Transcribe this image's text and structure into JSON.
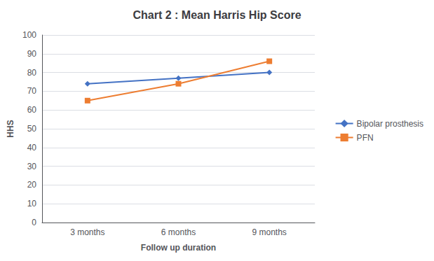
{
  "chart_data": {
    "type": "line",
    "title": "Chart 2 : Mean Harris Hip Score",
    "xlabel": "Follow up duration",
    "ylabel": "HHS",
    "categories": [
      "3 months",
      "6 months",
      "9 months"
    ],
    "series": [
      {
        "name": "Bipolar prosthesis",
        "color": "#4472C4",
        "marker": "diamond",
        "values": [
          74,
          77,
          80
        ]
      },
      {
        "name": "PFN",
        "color": "#ED7D31",
        "marker": "square",
        "values": [
          65,
          74,
          86
        ]
      }
    ],
    "ylim": [
      0,
      100
    ],
    "yticks": [
      0,
      10,
      20,
      30,
      40,
      50,
      60,
      70,
      80,
      90,
      100
    ],
    "grid": true,
    "legend": "right"
  }
}
